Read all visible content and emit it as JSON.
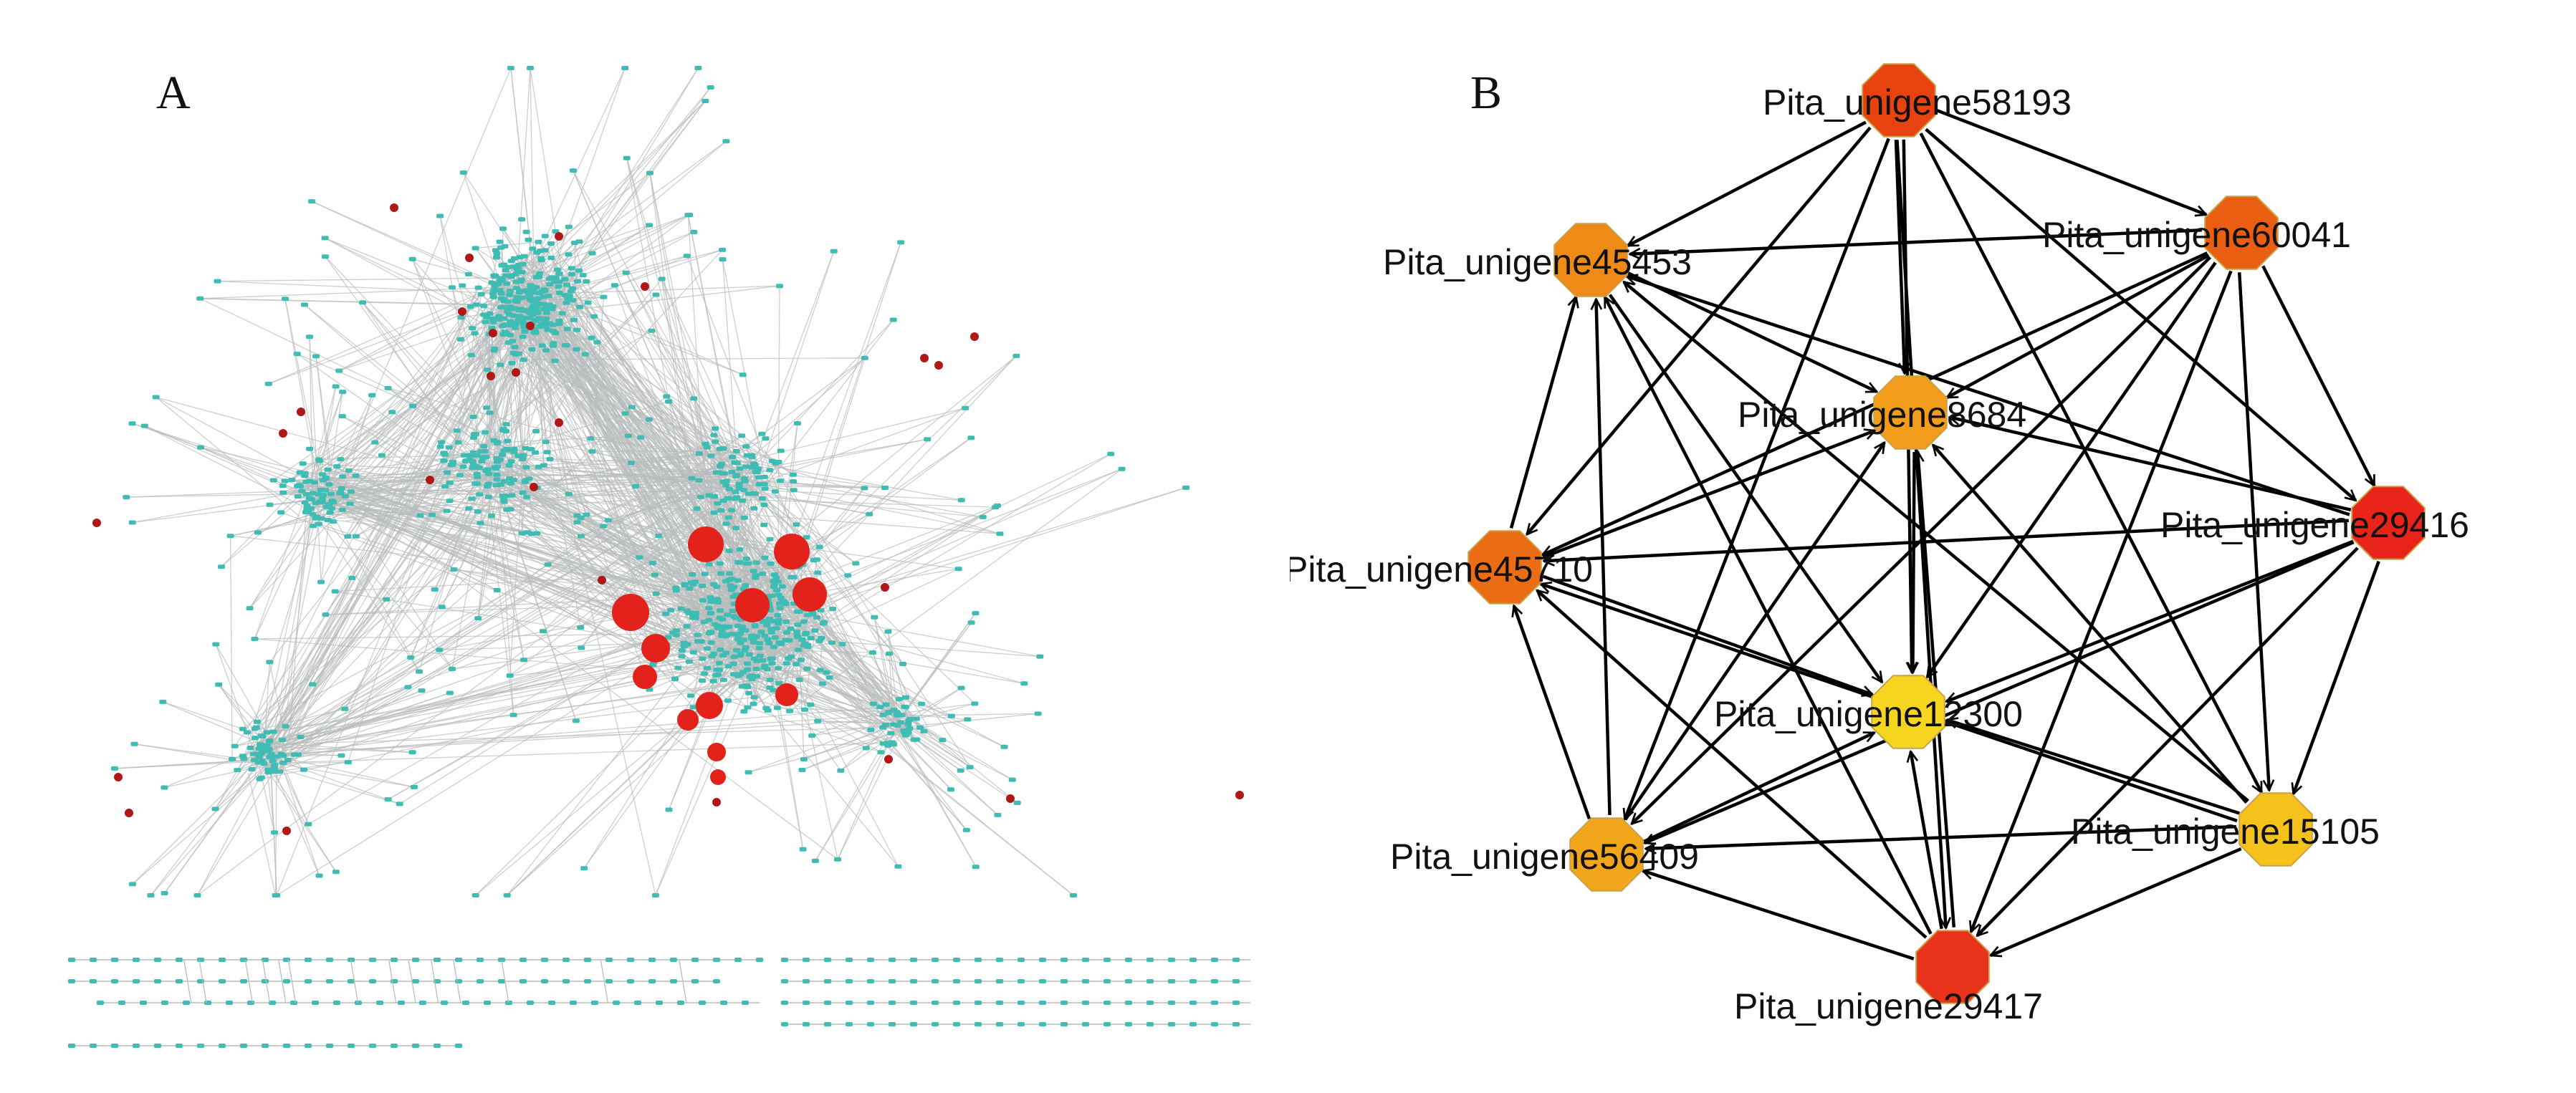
{
  "panel_a": {
    "letter": "A",
    "colors": {
      "node": "#3fbcb4",
      "edge": "#b9bcbc",
      "hub": "#e3221b",
      "hub_dark": "#b01818"
    }
  },
  "panel_b": {
    "letter": "B",
    "edge_color": "#000000",
    "nodes": [
      {
        "id": "n58193",
        "label": "Pita_unigene58193",
        "color": "#e8420f"
      },
      {
        "id": "n60041",
        "label": "Pita_unigene60041",
        "color": "#ea5e12"
      },
      {
        "id": "n29416",
        "label": "Pita_unigene29416",
        "color": "#e8231a"
      },
      {
        "id": "n15105",
        "label": "Pita_unigene15105",
        "color": "#f5c21c"
      },
      {
        "id": "n29417",
        "label": "Pita_unigene29417",
        "color": "#e8331a"
      },
      {
        "id": "n56409",
        "label": "Pita_unigene56409",
        "color": "#f1a51b"
      },
      {
        "id": "n45710",
        "label": "Pita_unigene45710",
        "color": "#ea6c15"
      },
      {
        "id": "n45453",
        "label": "Pita_unigene45453",
        "color": "#ef8a17"
      },
      {
        "id": "n8684",
        "label": "Pita_unigene8684",
        "color": "#f19c1a"
      },
      {
        "id": "n12300",
        "label": "Pita_unigene12300",
        "color": "#f5d51d"
      }
    ]
  }
}
